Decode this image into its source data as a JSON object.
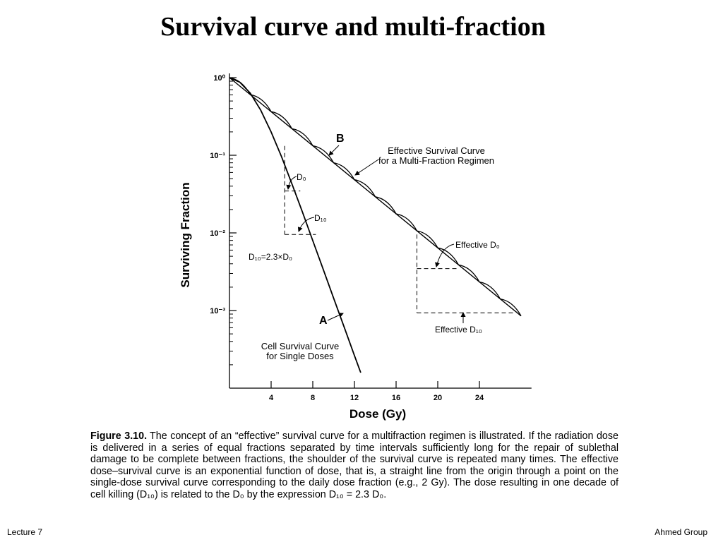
{
  "slide": {
    "title": "Survival curve and multi-fraction",
    "footer_left": "Lecture 7",
    "footer_right": "Ahmed Group"
  },
  "caption": {
    "figure_label": "Figure 3.10.",
    "text": "The concept of an “effective” survival curve for a multifraction regimen is illustrated. If the radiation dose is delivered in a series of equal fractions separated by time intervals sufficiently long for the repair of sublethal damage to be complete between fractions, the shoulder of the survival curve is repeated many times. The effective dose–survival curve is an exponential function of dose, that is, a straight line from the origin through a point on the single-dose survival curve corresponding to the daily dose fraction (e.g., 2 Gy). The dose resulting in one decade of cell killing (D₁₀) is related to the D₀ by the expression D₁₀ = 2.3 D₀."
  },
  "chart_data": {
    "type": "line",
    "xlabel": "Dose (Gy)",
    "ylabel": "Surviving Fraction",
    "x_ticks": [
      4,
      8,
      12,
      16,
      20,
      24
    ],
    "y_ticks": [
      "10⁰",
      "10⁻¹",
      "10⁻²",
      "10⁻³"
    ],
    "xlim": [
      0,
      29
    ],
    "ylim_log10": [
      -4,
      0
    ],
    "series": [
      {
        "label": "A",
        "name": "Cell Survival Curve for Single Doses",
        "x": [
          0,
          1,
          2,
          3,
          4,
          5,
          6,
          7,
          8,
          9,
          10,
          11,
          12,
          12.6
        ],
        "log10_y": [
          0,
          -0.06,
          -0.2,
          -0.42,
          -0.7,
          -1.02,
          -1.37,
          -1.73,
          -2.1,
          -2.47,
          -2.84,
          -3.21,
          -3.58,
          -3.8
        ]
      },
      {
        "label": "B",
        "name": "Effective Survival Curve for a Multi-Fraction Regimen",
        "x": [
          0,
          28
        ],
        "log10_y": [
          0,
          -3.07
        ],
        "fraction_size": 2
      }
    ],
    "annotations": [
      {
        "text": "D₀"
      },
      {
        "text": "D₁₀"
      },
      {
        "text": "D₁₀=2.3×D₀"
      },
      {
        "text": "Effective D₀"
      },
      {
        "text": "Effective D₁₀"
      }
    ]
  }
}
